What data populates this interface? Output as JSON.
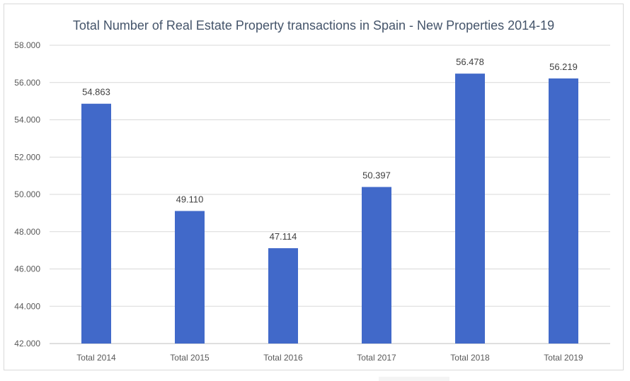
{
  "chart_data": {
    "type": "bar",
    "title": "Total Number of Real Estate Property transactions in Spain - New Properties 2014-19",
    "categories": [
      "Total 2014",
      "Total 2015",
      "Total 2016",
      "Total 2017",
      "Total 2018",
      "Total 2019"
    ],
    "values": [
      54863,
      49110,
      47114,
      50397,
      56478,
      56219
    ],
    "value_labels": [
      "54.863",
      "49.110",
      "47.114",
      "50.397",
      "56.478",
      "56.219"
    ],
    "ylim": [
      42000,
      58000
    ],
    "yticks": [
      42000,
      44000,
      46000,
      48000,
      50000,
      52000,
      54000,
      56000,
      58000
    ],
    "ytick_labels": [
      "42.000",
      "44.000",
      "46.000",
      "48.000",
      "50.000",
      "52.000",
      "54.000",
      "56.000",
      "58.000"
    ],
    "grid": true,
    "bar_color": "#4169c9",
    "xlabel": "",
    "ylabel": ""
  }
}
